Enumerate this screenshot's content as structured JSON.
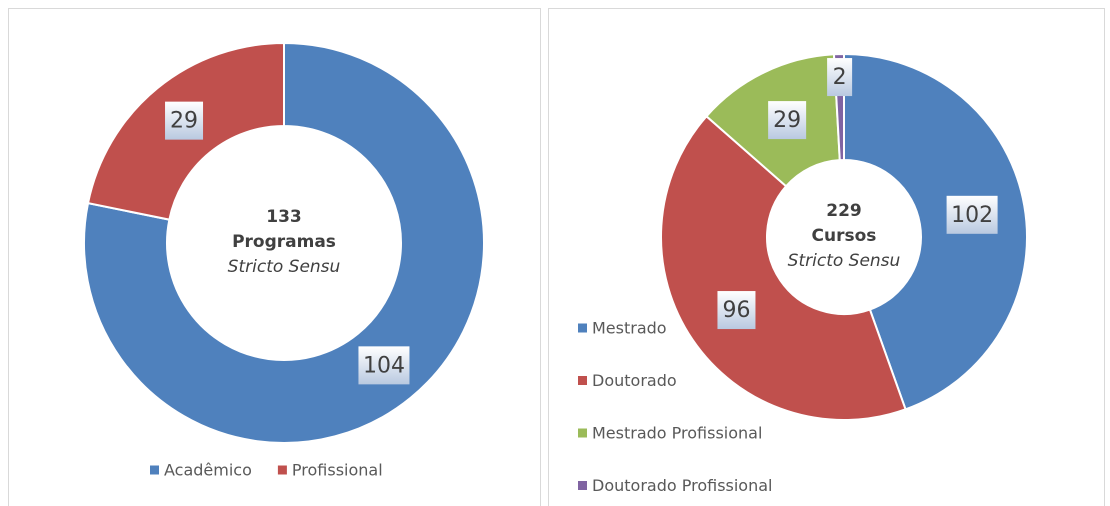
{
  "chart_data": [
    {
      "type": "donut",
      "center_text": [
        "133",
        "Programas",
        "Stricto Sensu"
      ],
      "categories": [
        "Acadêmico",
        "Profissional"
      ],
      "values": [
        104,
        29
      ],
      "colors": [
        "#4f81bd",
        "#c0504d"
      ],
      "legend": "bottom"
    },
    {
      "type": "donut",
      "center_text": [
        "229",
        "Cursos",
        "Stricto Sensu"
      ],
      "categories": [
        "Mestrado",
        "Doutorado",
        "Mestrado Profissional",
        "Doutorado Profissional"
      ],
      "values": [
        102,
        96,
        29,
        2
      ],
      "colors": [
        "#4f81bd",
        "#c0504d",
        "#9bbb59",
        "#8064a2"
      ],
      "legend": "left"
    }
  ]
}
